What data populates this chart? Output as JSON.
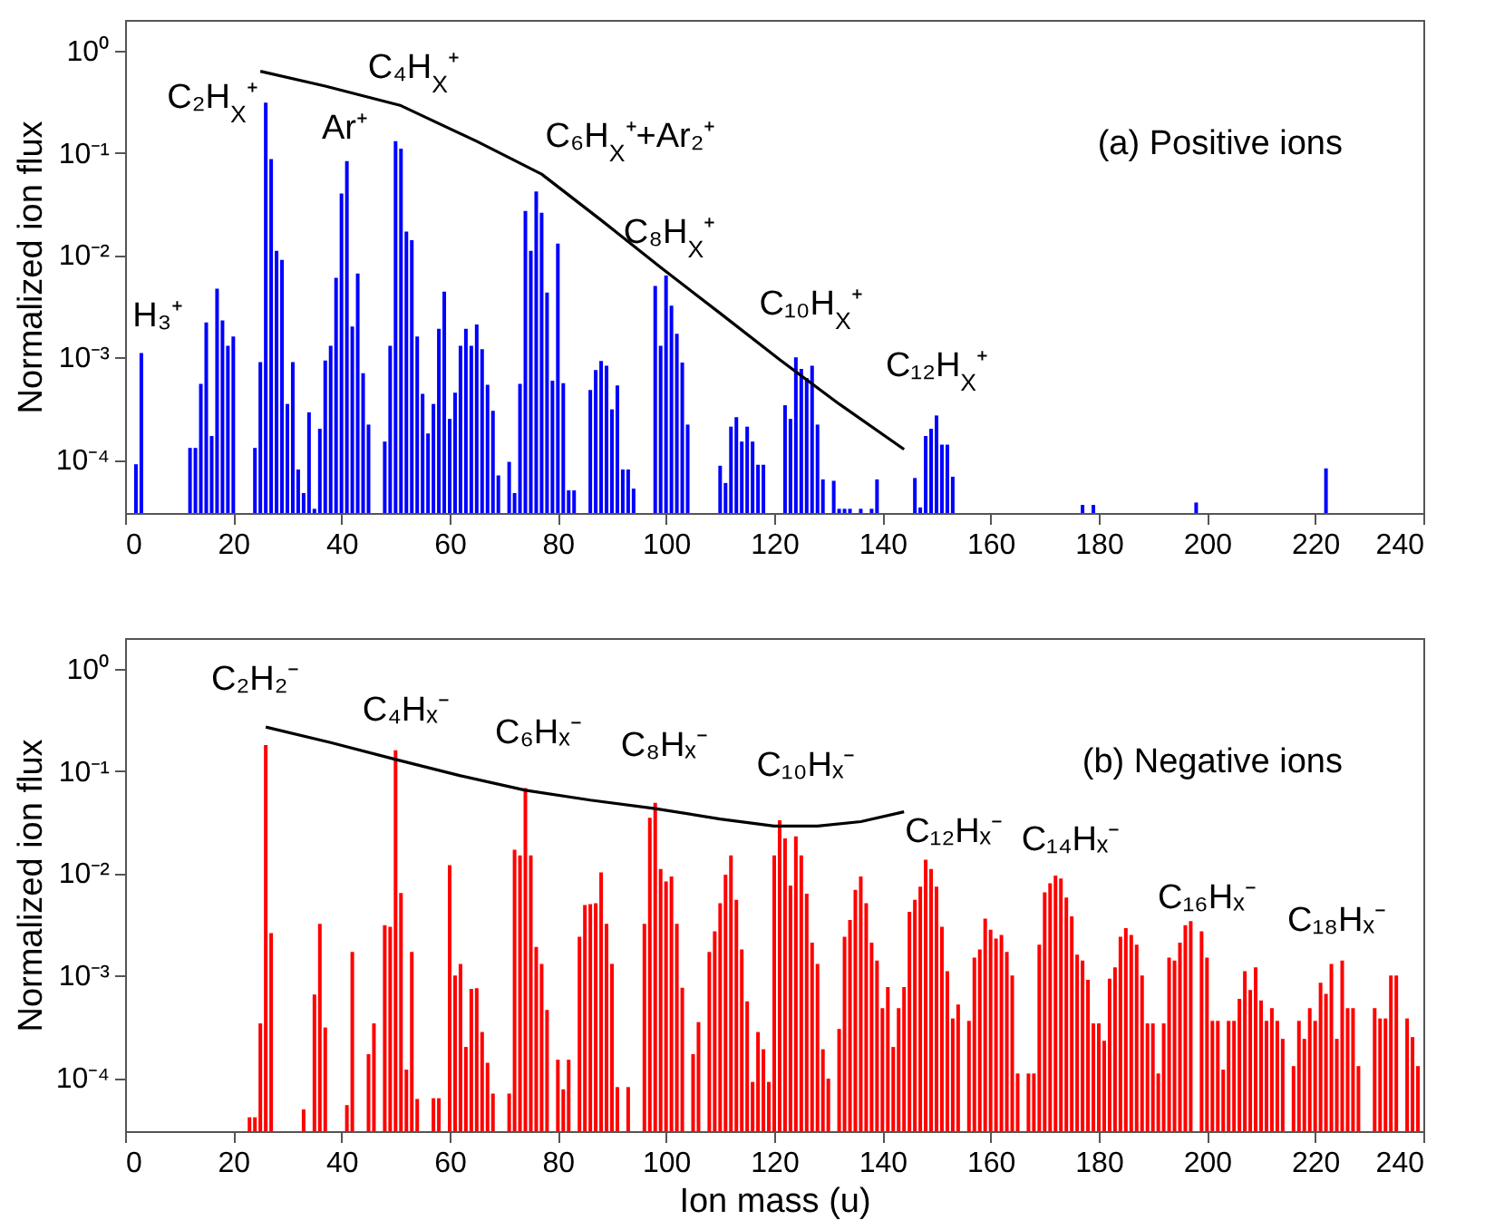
{
  "chart_data": [
    {
      "type": "bar",
      "title": "(a) Positive ions",
      "ylabel": "Normalized ion flux",
      "log": true,
      "xlim": [
        0,
        240
      ],
      "xticks": [
        0,
        20,
        40,
        60,
        80,
        100,
        120,
        140,
        160,
        180,
        200,
        220,
        240
      ],
      "ylim": [
        3e-05,
        2
      ],
      "yticks": [
        {
          "value": 0.0001,
          "label": "10⁻⁴"
        },
        {
          "value": 0.001,
          "label": "10⁻³"
        },
        {
          "value": 0.01,
          "label": "10⁻²"
        },
        {
          "value": 0.1,
          "label": "10⁻¹"
        },
        {
          "value": 1,
          "label": "10⁰"
        }
      ],
      "x": [
        2,
        3,
        12,
        13,
        14,
        15,
        16,
        17,
        18,
        19,
        20,
        24,
        25,
        26,
        27,
        28,
        29,
        30,
        31,
        32,
        33,
        34,
        35,
        36,
        37,
        38,
        39,
        40,
        41,
        42,
        43,
        44,
        45,
        48,
        49,
        50,
        51,
        52,
        53,
        54,
        55,
        56,
        57,
        58,
        59,
        60,
        61,
        62,
        63,
        64,
        65,
        66,
        67,
        68,
        69,
        71,
        72,
        73,
        74,
        75,
        76,
        77,
        78,
        79,
        80,
        81,
        82,
        83,
        86,
        87,
        88,
        89,
        90,
        91,
        92,
        93,
        94,
        98,
        99,
        100,
        101,
        102,
        103,
        104,
        110,
        111,
        112,
        113,
        114,
        115,
        116,
        117,
        118,
        122,
        123,
        124,
        125,
        126,
        127,
        128,
        129,
        131,
        132,
        133,
        134,
        136,
        138,
        139,
        146,
        147,
        148,
        149,
        150,
        151,
        152,
        153,
        177,
        179,
        198,
        222
      ],
      "series": [
        {
          "color": "#0000ff",
          "values": [
            9e-05,
            0.0011,
            0.00013,
            0.00013,
            0.00055,
            0.0022,
            0.00017,
            0.0047,
            0.0023,
            0.0013,
            0.0016,
            0.00013,
            0.0009,
            0.31,
            0.087,
            0.011,
            0.009,
            0.00035,
            0.0009,
            8e-05,
            4.7e-05,
            0.00029,
            3.3e-05,
            0.0002,
            0.00093,
            0.0013,
            0.006,
            0.04,
            0.083,
            0.002,
            0.0066,
            0.0007,
            0.00022,
            0.00015,
            0.0013,
            0.13,
            0.11,
            0.017,
            0.014,
            0.0016,
            0.00044,
            0.00018,
            0.00035,
            0.0019,
            0.0044,
            0.00025,
            0.00045,
            0.0013,
            0.0019,
            0.0013,
            0.0021,
            0.0012,
            0.00054,
            0.0003,
            7e-05,
            9.5e-05,
            4.7e-05,
            0.00055,
            0.027,
            0.011,
            0.042,
            0.026,
            0.0043,
            0.00059,
            0.013,
            0.00056,
            5e-05,
            5e-05,
            0.00048,
            0.00075,
            0.00092,
            0.00083,
            0.00031,
            0.00053,
            8e-05,
            8e-05,
            5.2e-05,
            0.005,
            0.0013,
            0.0063,
            0.0032,
            0.0017,
            0.00089,
            0.00022,
            8.7e-05,
            5.9e-05,
            0.00021,
            0.00026,
            0.00015,
            0.00021,
            0.00015,
            8.9e-05,
            8.9e-05,
            0.00034,
            0.00025,
            0.001,
            0.00077,
            0.00063,
            0.00083,
            0.00022,
            6.4e-05,
            6.2e-05,
            3.3e-05,
            3.3e-05,
            3.3e-05,
            3.3e-05,
            3.3e-05,
            6.4e-05,
            6.6e-05,
            3.4e-05,
            0.00017,
            0.0002,
            0.00027,
            0.00014,
            0.00014,
            6.8e-05,
            3.6e-05,
            3.6e-05,
            3.8e-05,
            8.2e-05
          ]
        },
        {
          "type": "line",
          "color": "#000000",
          "x": [
            25,
            37,
            51,
            65,
            77,
            88,
            99,
            110,
            121,
            132,
            144
          ],
          "values": [
            0.63,
            0.45,
            0.29,
            0.13,
            0.062,
            0.022,
            0.0076,
            0.0027,
            0.00095,
            0.00035,
            0.000126
          ]
        }
      ],
      "annotations": [
        "H₃⁺",
        "C₂H$_{X}$⁺",
        "Ar⁺",
        "C₄H$_{X}$⁺",
        "C₆H$_{X}$⁺+Ar₂⁺",
        "C₈H$_{X}$⁺",
        "C₁₀H$_{X}$⁺",
        "C₁₂H$_{X}$⁺"
      ]
    },
    {
      "type": "bar",
      "title": "(b) Negative ions",
      "ylabel": "Normalized ion flux",
      "xlabel": "Ion mass (u)",
      "log": true,
      "xlim": [
        0,
        240
      ],
      "xticks": [
        0,
        20,
        40,
        60,
        80,
        100,
        120,
        140,
        160,
        180,
        200,
        220,
        240
      ],
      "ylim": [
        3e-05,
        2
      ],
      "yticks": [
        {
          "value": 0.0001,
          "label": "10⁻⁴"
        },
        {
          "value": 0.001,
          "label": "10⁻³"
        },
        {
          "value": 0.01,
          "label": "10⁻²"
        },
        {
          "value": 0.1,
          "label": "10⁻¹"
        },
        {
          "value": 1,
          "label": "10⁰"
        }
      ],
      "x": [
        23,
        24,
        25,
        26,
        27,
        33,
        35,
        36,
        37,
        41,
        42,
        45,
        46,
        48,
        49,
        50,
        51,
        52,
        53,
        54,
        57,
        58,
        60,
        61,
        62,
        63,
        64,
        65,
        66,
        67,
        68,
        71,
        72,
        73,
        74,
        75,
        76,
        77,
        78,
        80,
        81,
        82,
        84,
        85,
        86,
        87,
        88,
        89,
        90,
        91,
        93,
        96,
        97,
        98,
        99,
        100,
        101,
        102,
        103,
        105,
        106,
        108,
        109,
        110,
        111,
        112,
        113,
        114,
        115,
        116,
        117,
        118,
        119,
        120,
        121,
        122,
        123,
        124,
        125,
        126,
        127,
        128,
        129,
        130,
        132,
        133,
        134,
        135,
        136,
        137,
        138,
        139,
        140,
        141,
        142,
        143,
        144,
        145,
        146,
        147,
        148,
        149,
        150,
        151,
        152,
        153,
        154,
        156,
        157,
        158,
        159,
        160,
        161,
        162,
        163,
        164,
        165,
        167,
        168,
        169,
        170,
        171,
        172,
        173,
        174,
        175,
        176,
        177,
        178,
        179,
        180,
        181,
        182,
        183,
        184,
        185,
        186,
        187,
        188,
        189,
        190,
        191,
        192,
        193,
        194,
        195,
        196,
        197,
        199,
        200,
        201,
        202,
        203,
        204,
        205,
        206,
        207,
        208,
        209,
        210,
        211,
        212,
        213,
        214,
        216,
        217,
        218,
        219,
        220,
        221,
        222,
        223,
        224,
        225,
        226,
        227,
        228,
        231,
        232,
        233,
        234,
        235,
        237,
        238,
        239
      ],
      "series": [
        {
          "color": "#ff0000",
          "values": [
            4.1e-05,
            4.1e-05,
            0.00034,
            0.18,
            0.0026,
            4.9e-05,
            0.00065,
            0.0032,
            0.00031,
            5.4e-05,
            0.0017,
            0.00017,
            0.00034,
            0.0031,
            0.003,
            0.16,
            0.0064,
            0.00012,
            0.0017,
            6.2e-05,
            6.3e-05,
            6.3e-05,
            0.012,
            0.001,
            0.0013,
            0.0002,
            0.00074,
            0.00075,
            0.00028,
            0.00014,
            7e-05,
            7e-05,
            0.017,
            0.015,
            0.068,
            0.015,
            0.0019,
            0.0013,
            0.00046,
            0.00015,
            7.7e-05,
            0.00015,
            0.0024,
            0.0049,
            0.005,
            0.0051,
            0.0102,
            0.0032,
            0.0013,
            8.1e-05,
            8.1e-05,
            0.0032,
            0.035,
            0.049,
            0.011,
            0.0083,
            0.0093,
            0.0032,
            0.00076,
            0.00017,
            0.00035,
            0.0017,
            0.0027,
            0.0051,
            0.0097,
            0.015,
            0.0055,
            0.0018,
            0.00056,
            9.1e-05,
            0.00028,
            0.00019,
            9.1e-05,
            0.015,
            0.033,
            0.022,
            0.0076,
            0.023,
            0.015,
            0.0063,
            0.0021,
            0.0013,
            0.00019,
            9.8e-05,
            0.0003,
            0.0024,
            0.0035,
            0.0069,
            0.0093,
            0.0051,
            0.0021,
            0.0014,
            0.00048,
            0.00077,
            0.0002,
            0.00048,
            0.00077,
            0.0042,
            0.0055,
            0.0074,
            0.0136,
            0.011,
            0.0074,
            0.003,
            0.0011,
            0.00038,
            0.00052,
            0.00036,
            0.0015,
            0.0018,
            0.0036,
            0.0028,
            0.0023,
            0.0025,
            0.0017,
            0.001,
            0.00011,
            0.00011,
            0.00011,
            0.002,
            0.0065,
            0.008,
            0.0095,
            0.0089,
            0.0058,
            0.0038,
            0.0016,
            0.0014,
            0.00091,
            0.00034,
            0.00034,
            0.00023,
            0.00093,
            0.0012,
            0.0024,
            0.0029,
            0.0025,
            0.002,
            0.001,
            0.00034,
            0.00034,
            0.00011,
            0.00034,
            0.0015,
            0.0014,
            0.0021,
            0.0031,
            0.0034,
            0.0027,
            0.0015,
            0.00036,
            0.00036,
            0.00012,
            0.00036,
            0.00036,
            0.00059,
            0.0011,
            0.00072,
            0.0012,
            0.00057,
            0.00036,
            0.00048,
            0.00036,
            0.00024,
            0.00013,
            0.00036,
            0.00024,
            0.00048,
            0.00036,
            0.00085,
            0.00066,
            0.0013,
            0.00024,
            0.0014,
            0.00048,
            0.00048,
            0.00013,
            0.00048,
            0.00038,
            0.00038,
            0.001,
            0.001,
            0.00038,
            0.00025,
            0.00013
          ]
        },
        {
          "type": "line",
          "color": "#000000",
          "x": [
            26,
            38,
            50,
            62,
            74,
            86,
            98,
            110,
            120,
            128,
            136,
            144
          ],
          "values": [
            0.27,
            0.19,
            0.13,
            0.09,
            0.065,
            0.052,
            0.043,
            0.034,
            0.029,
            0.029,
            0.032,
            0.04
          ]
        }
      ],
      "annotations": [
        "C₂H₂⁻",
        "C₄Hₓ⁻",
        "C₆Hₓ⁻",
        "C₈Hₓ⁻",
        "C₁₀Hₓ⁻",
        "C₁₂Hₓ⁻",
        "C₁₄Hₓ⁻",
        "C₁₆Hₓ⁻",
        "C₁₈Hₓ⁻"
      ]
    }
  ]
}
